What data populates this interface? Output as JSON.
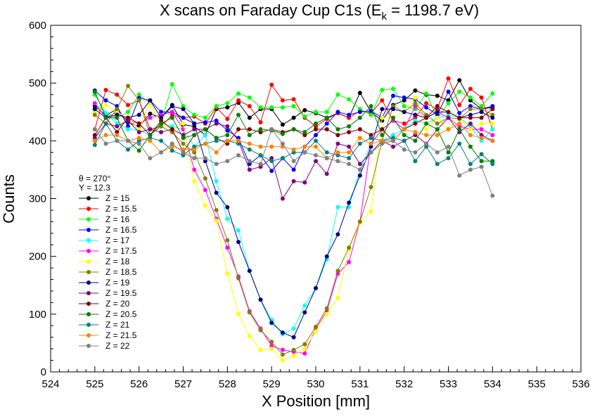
{
  "chart_data": {
    "type": "line",
    "title": "X scans on Faraday Cup C1s (E",
    "title_sub": "k",
    "title_tail": " = 1198.7 eV)",
    "xlabel": "X Position [mm]",
    "ylabel": "Counts",
    "xlim": [
      524,
      536
    ],
    "ylim": [
      0,
      600
    ],
    "x_ticks": [
      524,
      525,
      526,
      527,
      528,
      529,
      530,
      531,
      532,
      533,
      534,
      535,
      536
    ],
    "y_ticks": [
      0,
      100,
      200,
      300,
      400,
      500,
      600
    ],
    "grid": false,
    "legend_header": [
      "θ = 270°",
      "Y = 12.3"
    ],
    "x": [
      525,
      525.25,
      525.5,
      525.75,
      526,
      526.25,
      526.5,
      526.75,
      527,
      527.25,
      527.5,
      527.75,
      528,
      528.25,
      528.5,
      528.75,
      529,
      529.25,
      529.5,
      529.75,
      530,
      530.25,
      530.5,
      530.75,
      531,
      531.25,
      531.5,
      531.75,
      532,
      532.25,
      532.5,
      532.75,
      533,
      533.25,
      533.5,
      533.75,
      534
    ],
    "series": [
      {
        "name": "Z = 15",
        "color": "#000000",
        "values": [
          460,
          444,
          455,
          432,
          425,
          447,
          440,
          462,
          428,
          425,
          410,
          455,
          458,
          466,
          440,
          455,
          455,
          428,
          440,
          453,
          448,
          440,
          448,
          440,
          483,
          450,
          435,
          462,
          470,
          487,
          480,
          478,
          470,
          505,
          470,
          455,
          458
        ]
      },
      {
        "name": "Z = 15.5",
        "color": "#ff0000",
        "values": [
          420,
          488,
          480,
          462,
          470,
          420,
          425,
          445,
          440,
          442,
          430,
          458,
          438,
          470,
          460,
          432,
          497,
          470,
          472,
          440,
          425,
          438,
          448,
          440,
          452,
          448,
          470,
          435,
          430,
          440,
          465,
          455,
          508,
          462,
          490,
          475,
          420
        ]
      },
      {
        "name": "Z = 16",
        "color": "#00ff00",
        "values": [
          480,
          448,
          440,
          450,
          480,
          465,
          430,
          498,
          460,
          445,
          440,
          460,
          465,
          482,
          475,
          458,
          458,
          458,
          460,
          442,
          450,
          450,
          480,
          472,
          455,
          445,
          488,
          490,
          460,
          455,
          482,
          440,
          465,
          485,
          475,
          460,
          482
        ]
      },
      {
        "name": "Z = 16.5",
        "color": "#0000ff",
        "values": [
          487,
          470,
          460,
          425,
          474,
          470,
          450,
          450,
          440,
          430,
          432,
          435,
          418,
          405,
          360,
          375,
          348,
          370,
          350,
          390,
          410,
          430,
          450,
          445,
          450,
          452,
          440,
          478,
          475,
          472,
          458,
          445,
          485,
          448,
          460,
          455,
          460
        ]
      },
      {
        "name": "Z = 17",
        "color": "#00ffff",
        "values": [
          465,
          448,
          430,
          420,
          418,
          410,
          430,
          425,
          420,
          390,
          410,
          330,
          265,
          245,
          175,
          125,
          90,
          65,
          75,
          115,
          145,
          195,
          285,
          285,
          350,
          395,
          400,
          410,
          420,
          435,
          430,
          440,
          445,
          440,
          425,
          400,
          420
        ]
      },
      {
        "name": "Z = 17.5",
        "color": "#ff00ff",
        "values": [
          465,
          440,
          450,
          435,
          430,
          440,
          445,
          450,
          420,
          350,
          315,
          265,
          215,
          165,
          105,
          75,
          45,
          38,
          35,
          32,
          75,
          105,
          170,
          190,
          260,
          395,
          420,
          435,
          420,
          460,
          440,
          450,
          440,
          425,
          420,
          420,
          410
        ]
      },
      {
        "name": "Z = 18",
        "color": "#ffff00",
        "values": [
          450,
          462,
          450,
          440,
          420,
          465,
          430,
          420,
          430,
          330,
          288,
          262,
          170,
          100,
          62,
          38,
          40,
          20,
          28,
          40,
          70,
          100,
          128,
          212,
          258,
          278,
          440,
          440,
          450,
          475,
          420,
          440,
          420,
          440,
          420,
          430,
          430
        ]
      },
      {
        "name": "Z = 18.5",
        "color": "#808000",
        "values": [
          445,
          430,
          455,
          495,
          470,
          410,
          425,
          415,
          395,
          380,
          335,
          280,
          228,
          162,
          103,
          72,
          52,
          30,
          38,
          48,
          78,
          110,
          175,
          215,
          260,
          320,
          400,
          460,
          450,
          465,
          445,
          430,
          440,
          438,
          455,
          455,
          445
        ]
      },
      {
        "name": "Z = 19",
        "color": "#000080",
        "values": [
          455,
          440,
          445,
          440,
          445,
          470,
          440,
          460,
          455,
          430,
          365,
          310,
          285,
          225,
          175,
          125,
          85,
          68,
          60,
          103,
          145,
          200,
          238,
          293,
          340,
          390,
          455,
          455,
          450,
          445,
          440,
          450,
          450,
          440,
          445,
          450,
          440
        ]
      },
      {
        "name": "Z = 19.5",
        "color": "#800080",
        "values": [
          405,
          430,
          425,
          435,
          415,
          420,
          415,
          420,
          410,
          420,
          420,
          430,
          425,
          400,
          350,
          355,
          370,
          300,
          330,
          328,
          365,
          343,
          395,
          390,
          360,
          380,
          400,
          390,
          400,
          410,
          395,
          420,
          440,
          415,
          430,
          410,
          400
        ]
      },
      {
        "name": "Z = 20",
        "color": "#800000",
        "values": [
          410,
          440,
          415,
          440,
          430,
          410,
          435,
          420,
          380,
          410,
          420,
          405,
          395,
          420,
          420,
          415,
          420,
          415,
          420,
          410,
          420,
          420,
          410,
          415,
          420,
          410,
          420,
          400,
          420,
          430,
          440,
          460,
          450,
          440,
          440,
          440,
          455
        ]
      },
      {
        "name": "Z = 20.5",
        "color": "#008000",
        "values": [
          485,
          440,
          440,
          400,
          383,
          410,
          430,
          440,
          405,
          410,
          420,
          405,
          410,
          445,
          410,
          420,
          418,
          412,
          420,
          415,
          430,
          440,
          420,
          425,
          440,
          460,
          410,
          440,
          410,
          400,
          430,
          420,
          380,
          420,
          390,
          365,
          365
        ]
      },
      {
        "name": "Z = 21",
        "color": "#008080",
        "values": [
          393,
          430,
          400,
          385,
          400,
          405,
          400,
          383,
          375,
          390,
          395,
          400,
          400,
          395,
          385,
          375,
          365,
          370,
          380,
          380,
          400,
          380,
          375,
          370,
          395,
          405,
          400,
          405,
          400,
          365,
          390,
          360,
          370,
          395,
          360,
          377,
          360
        ]
      },
      {
        "name": "Z = 21.5",
        "color": "#ff8000",
        "values": [
          400,
          410,
          410,
          400,
          405,
          400,
          380,
          390,
          385,
          385,
          395,
          380,
          400,
          400,
          395,
          390,
          390,
          390,
          385,
          390,
          390,
          370,
          380,
          380,
          405,
          395,
          400,
          400,
          420,
          415,
          410,
          410,
          420,
          430,
          410,
          405,
          400
        ]
      },
      {
        "name": "Z = 22",
        "color": "#808080",
        "values": [
          420,
          395,
          400,
          400,
          395,
          370,
          380,
          395,
          380,
          370,
          370,
          360,
          365,
          375,
          365,
          360,
          420,
          395,
          365,
          380,
          375,
          370,
          365,
          360,
          350,
          380,
          395,
          400,
          385,
          380,
          395,
          380,
          390,
          340,
          350,
          355,
          305
        ]
      }
    ]
  }
}
